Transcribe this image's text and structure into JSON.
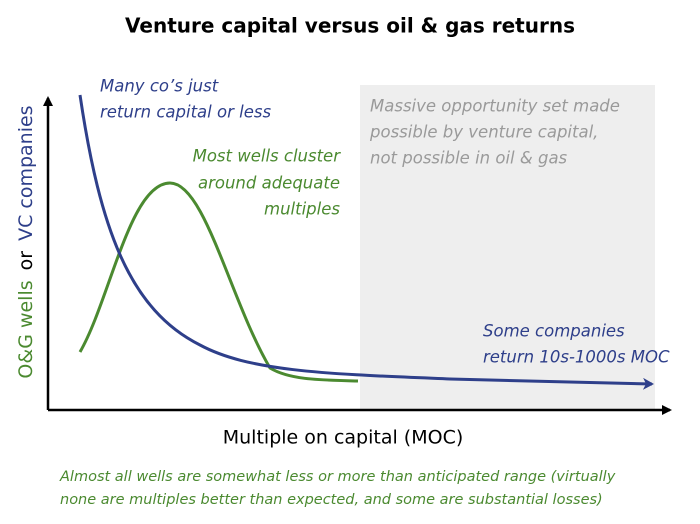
{
  "title": "Venture capital versus oil & gas returns",
  "y_axis_label": {
    "part1": "O&G wells",
    "part2": "or",
    "part3": "VC companies"
  },
  "x_axis_label": "Multiple on capital (MOC)",
  "annotations": {
    "vc_low": [
      "Many co’s just",
      "return capital or less"
    ],
    "wells_cluster": [
      "Most wells cluster",
      "around adequate",
      "multiples"
    ],
    "opportunity": [
      "Massive opportunity set made",
      "possible by venture capital,",
      "not possible in oil & gas"
    ],
    "vc_high": [
      "Some companies",
      "return 10s-1000s MOC"
    ]
  },
  "footnote": [
    "Almost all wells are somewhat less or more than anticipated range (virtually",
    "none are multiples better than expected, and some are substantial losses)"
  ]
}
